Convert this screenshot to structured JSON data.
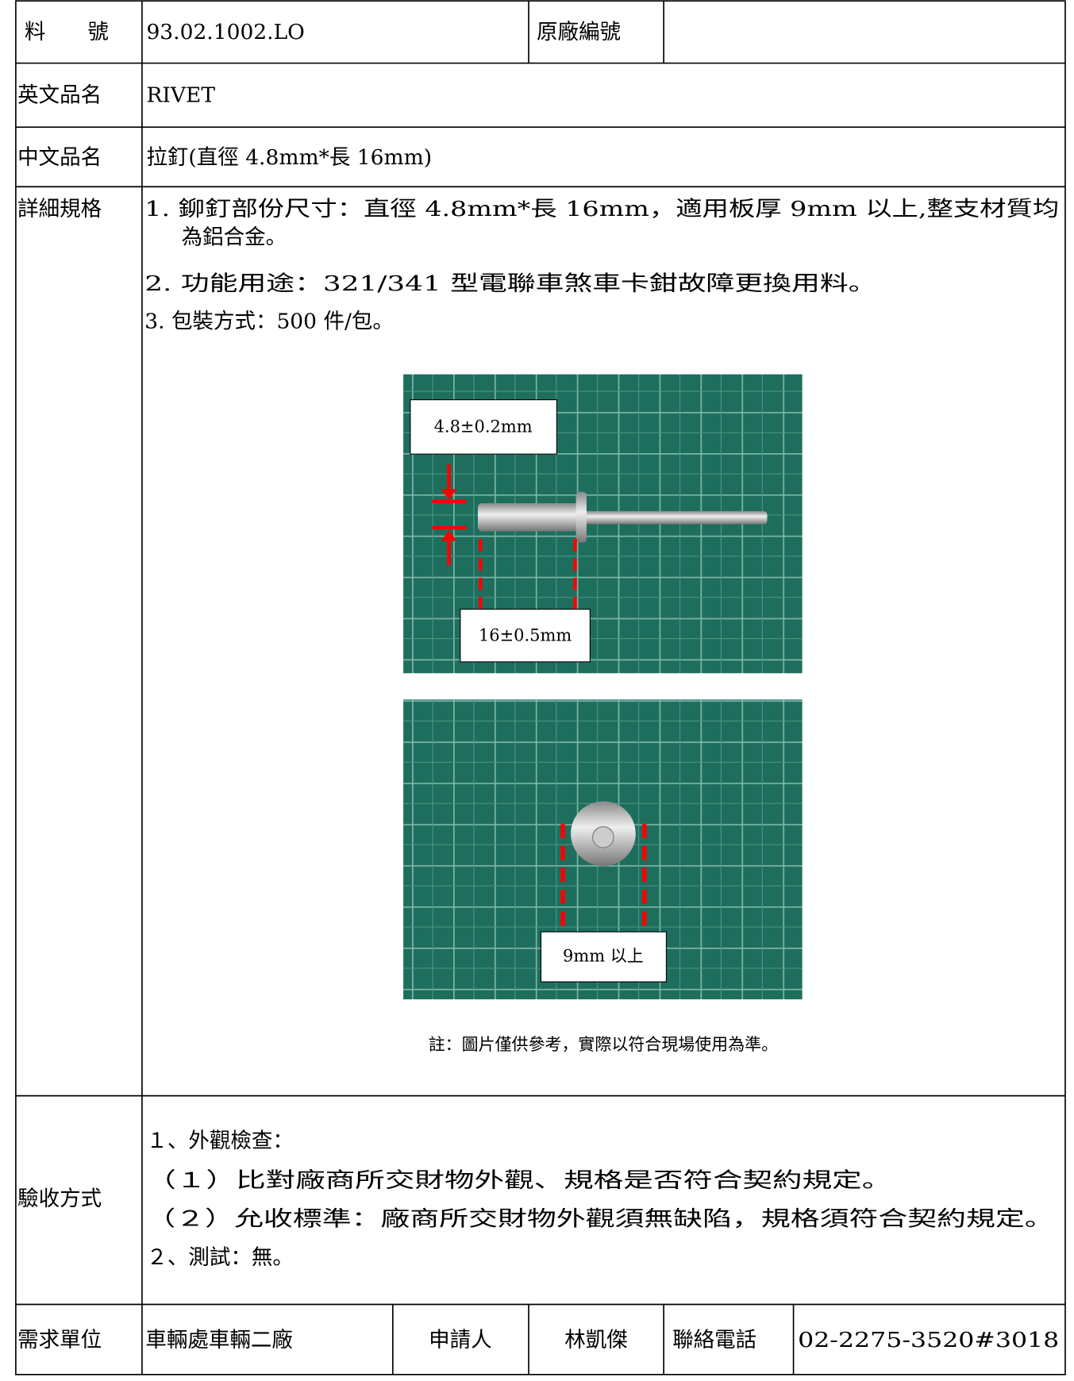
{
  "header": {
    "part_no_label": "料　　號",
    "part_no": "93.02.1002.LO",
    "orig_no_label": "原廠編號",
    "en_name_label": "英文品名",
    "en_name": "RIVET",
    "zh_name_label": "中文品名",
    "zh_name": "拉釘(直徑 4.8mm*長 16mm)"
  },
  "spec": {
    "label": "詳細規格",
    "lines": [
      "1. 鉚釘部份尺寸：直徑 4.8mm*長 16mm，適用板厚 9mm 以上,整支材質均",
      "為鋁合金。",
      "2. 功能用途：321/341 型電聯車煞車卡鉗故障更換用料。",
      "3. 包裝方式：500 件/包。"
    ],
    "photo1": {
      "diameter": "4.8±0.2mm",
      "length": "16±0.5mm"
    },
    "photo2": {
      "thickness": "9mm 以上"
    },
    "note": "註：圖片僅供參考，實際以符合現場使用為準。"
  },
  "acceptance": {
    "label": "驗收方式",
    "lines": [
      "１、外觀檢查：",
      "（１）比對廠商所交財物外觀、規格是否符合契約規定。",
      "（２）允收標準：廠商所交財物外觀須無缺陷，規格須符合契約規定。",
      "２、測試：無。"
    ]
  },
  "footer": {
    "unit_label": "需求單位",
    "unit": "車輛處車輛二廠",
    "applicant_label": "申請人",
    "applicant": "林凱傑",
    "phone_label": "聯絡電話",
    "phone": "02-2275-3520#3018"
  }
}
